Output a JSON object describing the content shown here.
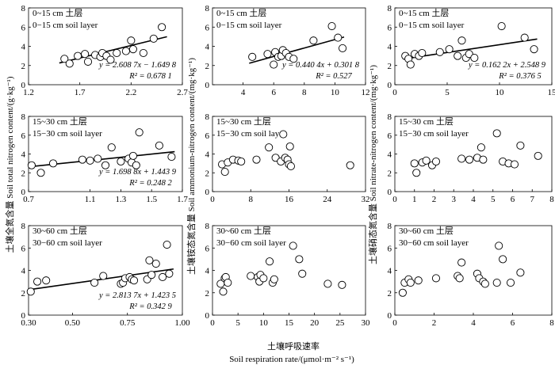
{
  "figure": {
    "x_title_zh": "土壤呼吸速率",
    "x_title_en": "Soil respiration rate/(μmol·m⁻² s⁻¹)",
    "col_titles": [
      "土壤全氮含量   Soil total nitrogen content/(g·kg⁻¹)",
      "土壤铵态氮含量   Soil ammonium-nitrogen content/(mg·kg⁻¹)",
      "土壤硝态氮含量   Soil nitrate-nitrogen content/(mg·kg⁻¹)"
    ]
  },
  "chart_data": [
    {
      "id": "p00",
      "type": "scatter",
      "title": "0~15 cm 土层",
      "subtitle": "0−15 cm soil layer",
      "xlim": [
        1.2,
        2.7
      ],
      "xticks": [
        1.2,
        1.7,
        2.2,
        2.7
      ],
      "xticklabels": [
        "1.2",
        "1.7",
        "2.2",
        "2.7"
      ],
      "ylim": [
        0,
        8
      ],
      "yticks": [
        0,
        2,
        4,
        6,
        8
      ],
      "x": [
        1.55,
        1.6,
        1.68,
        1.75,
        1.78,
        1.85,
        1.9,
        1.92,
        1.96,
        2.0,
        2.06,
        2.15,
        2.2,
        2.22,
        2.32,
        2.42,
        2.5
      ],
      "y": [
        2.7,
        2.2,
        3.0,
        3.2,
        2.4,
        3.1,
        2.9,
        3.3,
        3.0,
        2.6,
        3.3,
        3.5,
        4.6,
        3.7,
        3.3,
        4.8,
        6.0
      ],
      "equation": "y = 2.608 7x − 1.649 8",
      "r2": "R² = 0.678 1",
      "fit": [
        1.5,
        2.55
      ]
    },
    {
      "id": "p01",
      "type": "scatter",
      "title": "0~15 cm 土层",
      "subtitle": "0−15 cm soil layer",
      "xlim": [
        2,
        12
      ],
      "xticks": [
        4,
        6,
        8,
        10,
        12
      ],
      "xticklabels": [
        "4",
        "6",
        "8",
        "10",
        "12"
      ],
      "ylim": [
        0,
        8
      ],
      "yticks": [
        0,
        2,
        4,
        6,
        8
      ],
      "x": [
        4.6,
        5.6,
        6.0,
        6.1,
        6.3,
        6.5,
        6.6,
        6.8,
        7.0,
        7.3,
        8.6,
        9.8,
        10.2,
        10.5
      ],
      "y": [
        2.9,
        3.2,
        2.1,
        3.4,
        2.9,
        3.0,
        3.6,
        3.3,
        2.9,
        2.7,
        4.6,
        6.1,
        4.9,
        3.8
      ],
      "equation": "y = 0.440 4x + 0.301 8",
      "r2": "R² = 0.527",
      "fit": [
        4.4,
        10.6
      ]
    },
    {
      "id": "p02",
      "type": "scatter",
      "title": "0~15 cm 土层",
      "subtitle": "0−15 cm soil layer",
      "xlim": [
        0,
        15
      ],
      "xticks": [
        0,
        5,
        10,
        15
      ],
      "xticklabels": [
        "0",
        "5",
        "10",
        "15"
      ],
      "ylim": [
        0,
        8
      ],
      "yticks": [
        0,
        2,
        4,
        6,
        8
      ],
      "x": [
        1.0,
        1.3,
        1.5,
        1.9,
        2.3,
        2.6,
        4.3,
        5.2,
        6.0,
        6.4,
        6.8,
        7.1,
        7.6,
        10.2,
        12.4,
        13.3
      ],
      "y": [
        3.0,
        2.7,
        2.1,
        3.2,
        3.0,
        3.3,
        3.4,
        3.7,
        3.0,
        4.6,
        2.8,
        3.2,
        2.8,
        6.1,
        4.9,
        3.7
      ],
      "equation": "y = 0.162 2x + 2.548 9",
      "r2": "R² = 0.376 5",
      "fit": [
        0.8,
        13.6
      ]
    },
    {
      "id": "p10",
      "type": "scatter",
      "title": "15~30 cm 土层",
      "subtitle": "15−30 cm soil layer",
      "xlim": [
        0.7,
        1.7
      ],
      "xticks": [
        0.7,
        1.1,
        1.3,
        1.5,
        1.7
      ],
      "xticklabels": [
        "0.7",
        "1.1",
        "1.3",
        "1.5",
        "1.7"
      ],
      "ylim": [
        0,
        8
      ],
      "yticks": [
        0,
        2,
        4,
        6,
        8
      ],
      "x": [
        0.72,
        0.78,
        0.86,
        1.05,
        1.1,
        1.15,
        1.2,
        1.24,
        1.3,
        1.35,
        1.37,
        1.38,
        1.4,
        1.42,
        1.55,
        1.63
      ],
      "y": [
        2.8,
        2.0,
        3.0,
        3.4,
        3.3,
        3.5,
        2.8,
        4.7,
        3.2,
        3.5,
        3.1,
        3.8,
        2.8,
        6.3,
        4.9,
        3.7
      ],
      "equation": "y = 1.698 8x + 1.443 9",
      "r2": "R² = 0.248 2",
      "fit": [
        0.7,
        1.65
      ]
    },
    {
      "id": "p11",
      "type": "scatter",
      "title": "15~30 cm 土层",
      "subtitle": "15−30 cm soil layer",
      "xlim": [
        0,
        32
      ],
      "xticks": [
        0,
        8,
        16,
        24,
        32
      ],
      "xticklabels": [
        "0",
        "8",
        "16",
        "24",
        "32"
      ],
      "ylim": [
        0,
        8
      ],
      "yticks": [
        0,
        2,
        4,
        6,
        8
      ],
      "x": [
        2.0,
        2.6,
        3.2,
        4.3,
        5.4,
        6.0,
        9.2,
        11.8,
        13.2,
        14.3,
        14.8,
        15.2,
        15.7,
        16.0,
        16.2,
        16.4,
        28.8
      ],
      "y": [
        2.9,
        2.1,
        3.1,
        3.4,
        3.3,
        3.2,
        3.4,
        4.7,
        3.6,
        3.2,
        6.1,
        3.6,
        3.4,
        2.9,
        4.8,
        2.7,
        2.8
      ],
      "equation": "",
      "r2": ""
    },
    {
      "id": "p12",
      "type": "scatter",
      "title": "15~30 cm 土层",
      "subtitle": "15−30 cm soil layer",
      "xlim": [
        0,
        8
      ],
      "xticks": [
        0,
        1,
        2,
        3,
        4,
        5,
        6,
        7,
        8
      ],
      "xticklabels": [
        "0",
        "1",
        "2",
        "3",
        "4",
        "5",
        "6",
        "7",
        "8"
      ],
      "ylim": [
        0,
        8
      ],
      "yticks": [
        0,
        2,
        4,
        6,
        8
      ],
      "x": [
        1.0,
        1.1,
        1.4,
        1.6,
        1.9,
        2.1,
        3.4,
        3.8,
        4.2,
        4.4,
        4.5,
        5.2,
        5.5,
        5.8,
        6.1,
        6.4,
        7.3
      ],
      "y": [
        3.0,
        2.0,
        3.1,
        3.3,
        2.8,
        3.2,
        3.5,
        3.4,
        3.6,
        4.7,
        3.4,
        6.2,
        3.2,
        3.0,
        2.9,
        4.9,
        3.8
      ],
      "equation": "",
      "r2": ""
    },
    {
      "id": "p20",
      "type": "scatter",
      "title": "30~60 cm 土层",
      "subtitle": "30−60 cm soil layer",
      "xlim": [
        0.3,
        1.0
      ],
      "xticks": [
        0.3,
        0.5,
        0.75,
        1.0
      ],
      "xticklabels": [
        "0.30",
        "0.50",
        "0.75",
        "1.00"
      ],
      "ylim": [
        0,
        8
      ],
      "yticks": [
        0,
        2,
        4,
        6,
        8
      ],
      "x": [
        0.31,
        0.34,
        0.38,
        0.6,
        0.64,
        0.72,
        0.73,
        0.74,
        0.76,
        0.77,
        0.78,
        0.84,
        0.85,
        0.86,
        0.88,
        0.91,
        0.93,
        0.94
      ],
      "y": [
        2.1,
        3.0,
        3.1,
        2.9,
        3.5,
        2.8,
        2.9,
        3.3,
        3.4,
        3.2,
        3.1,
        3.2,
        4.9,
        3.6,
        4.6,
        3.4,
        6.3,
        3.7
      ],
      "equation": "y = 2.813 7x + 1.423 5",
      "r2": "R² = 0.342 9",
      "fit": [
        0.3,
        0.96
      ]
    },
    {
      "id": "p21",
      "type": "scatter",
      "title": "30~60 cm 土层",
      "subtitle": "30−60 cm soil layer",
      "xlim": [
        0,
        30
      ],
      "xticks": [
        0,
        5,
        10,
        15,
        20,
        25,
        30
      ],
      "xticklabels": [
        "0",
        "5",
        "10",
        "15",
        "20",
        "25",
        "30"
      ],
      "ylim": [
        0,
        8
      ],
      "yticks": [
        0,
        2,
        4,
        6,
        8
      ],
      "x": [
        1.6,
        2.1,
        2.4,
        2.6,
        3.0,
        7.5,
        8.9,
        9.2,
        9.4,
        10.0,
        11.2,
        11.8,
        12.1,
        15.8,
        17.0,
        17.6,
        22.6,
        25.4
      ],
      "y": [
        2.8,
        2.1,
        3.3,
        3.4,
        2.9,
        3.5,
        3.4,
        3.0,
        3.6,
        3.3,
        4.8,
        2.9,
        3.2,
        6.2,
        5.0,
        3.7,
        2.8,
        2.7
      ],
      "equation": "",
      "r2": ""
    },
    {
      "id": "p22",
      "type": "scatter",
      "title": "30~60 cm 土层",
      "subtitle": "30−60 cm soil layer",
      "xlim": [
        0,
        8
      ],
      "xticks": [
        0,
        2,
        4,
        6,
        8
      ],
      "xticklabels": [
        "0",
        "2",
        "4",
        "6",
        "8"
      ],
      "ylim": [
        0,
        8
      ],
      "yticks": [
        0,
        2,
        4,
        6,
        8
      ],
      "x": [
        0.4,
        0.5,
        0.7,
        0.8,
        1.2,
        2.1,
        3.2,
        3.3,
        3.4,
        4.2,
        4.3,
        4.5,
        4.6,
        5.2,
        5.3,
        5.5,
        5.9,
        6.4
      ],
      "y": [
        2.0,
        2.9,
        3.2,
        2.9,
        3.1,
        3.3,
        3.5,
        3.3,
        4.7,
        3.7,
        3.3,
        3.0,
        2.8,
        2.9,
        6.2,
        5.0,
        2.9,
        3.8
      ],
      "equation": "",
      "r2": ""
    }
  ]
}
